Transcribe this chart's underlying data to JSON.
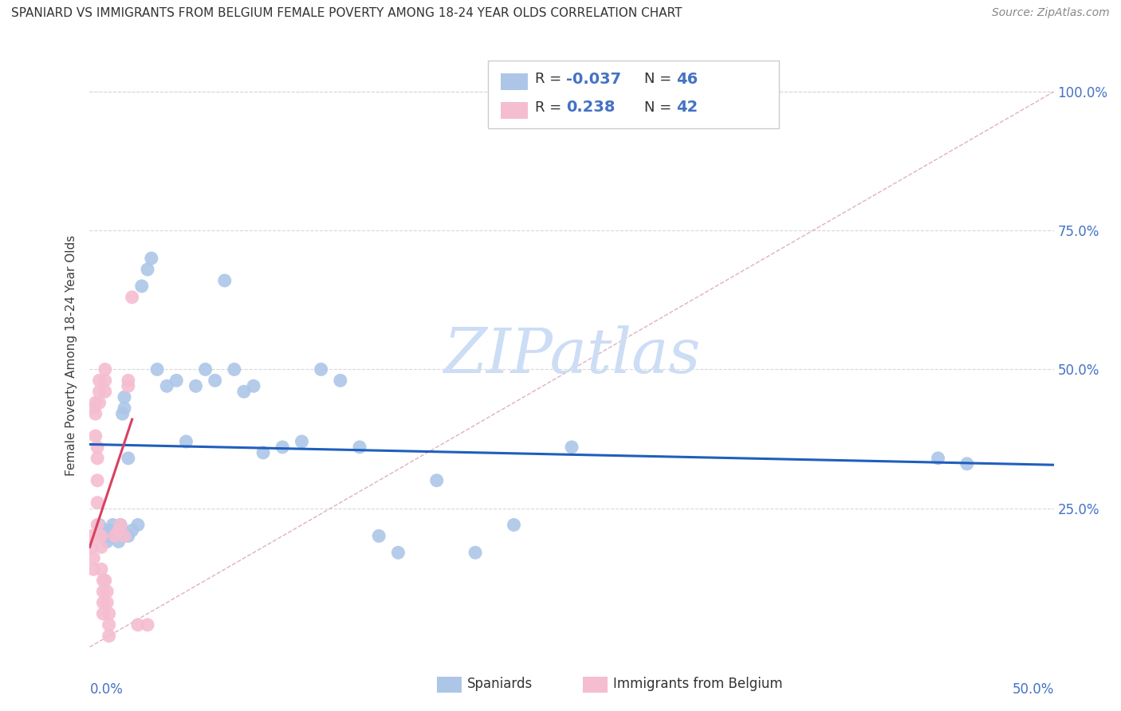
{
  "title": "SPANIARD VS IMMIGRANTS FROM BELGIUM FEMALE POVERTY AMONG 18-24 YEAR OLDS CORRELATION CHART",
  "source": "Source: ZipAtlas.com",
  "ylabel": "Female Poverty Among 18-24 Year Olds",
  "y_tick_labels": [
    "100.0%",
    "75.0%",
    "50.0%",
    "25.0%"
  ],
  "y_tick_values": [
    1.0,
    0.75,
    0.5,
    0.25
  ],
  "x_range": [
    0.0,
    0.5
  ],
  "y_range": [
    0.0,
    1.05
  ],
  "legend_blue_r": "-0.037",
  "legend_blue_n": "46",
  "legend_pink_r": "0.238",
  "legend_pink_n": "42",
  "blue_color": "#adc6e8",
  "pink_color": "#f5bdd0",
  "blue_line_color": "#1f5fbd",
  "pink_line_color": "#d94060",
  "diagonal_color": "#e0b0c0",
  "grid_color": "#d8d8d8",
  "watermark_color": "#ccddf5",
  "spaniards_x": [
    0.005,
    0.007,
    0.008,
    0.009,
    0.01,
    0.01,
    0.012,
    0.013,
    0.015,
    0.015,
    0.016,
    0.017,
    0.018,
    0.018,
    0.02,
    0.02,
    0.022,
    0.025,
    0.027,
    0.03,
    0.032,
    0.035,
    0.04,
    0.045,
    0.05,
    0.055,
    0.06,
    0.065,
    0.07,
    0.075,
    0.08,
    0.085,
    0.09,
    0.1,
    0.11,
    0.12,
    0.13,
    0.14,
    0.15,
    0.16,
    0.18,
    0.2,
    0.22,
    0.25,
    0.44,
    0.455
  ],
  "spaniards_y": [
    0.22,
    0.2,
    0.21,
    0.19,
    0.2,
    0.21,
    0.22,
    0.2,
    0.19,
    0.21,
    0.22,
    0.42,
    0.43,
    0.45,
    0.34,
    0.2,
    0.21,
    0.22,
    0.65,
    0.68,
    0.7,
    0.5,
    0.47,
    0.48,
    0.37,
    0.47,
    0.5,
    0.48,
    0.66,
    0.5,
    0.46,
    0.47,
    0.35,
    0.36,
    0.37,
    0.5,
    0.48,
    0.36,
    0.2,
    0.17,
    0.3,
    0.17,
    0.22,
    0.36,
    0.34,
    0.33
  ],
  "belgium_x": [
    0.001,
    0.001,
    0.002,
    0.002,
    0.002,
    0.003,
    0.003,
    0.003,
    0.004,
    0.004,
    0.004,
    0.004,
    0.004,
    0.005,
    0.005,
    0.005,
    0.005,
    0.006,
    0.006,
    0.006,
    0.007,
    0.007,
    0.007,
    0.007,
    0.008,
    0.008,
    0.008,
    0.008,
    0.009,
    0.009,
    0.01,
    0.01,
    0.01,
    0.013,
    0.015,
    0.016,
    0.018,
    0.02,
    0.02,
    0.022,
    0.025,
    0.03
  ],
  "belgium_y": [
    0.2,
    0.18,
    0.43,
    0.16,
    0.14,
    0.44,
    0.42,
    0.38,
    0.36,
    0.34,
    0.3,
    0.26,
    0.22,
    0.48,
    0.46,
    0.44,
    0.2,
    0.2,
    0.18,
    0.14,
    0.12,
    0.1,
    0.08,
    0.06,
    0.5,
    0.48,
    0.46,
    0.12,
    0.1,
    0.08,
    0.06,
    0.04,
    0.02,
    0.2,
    0.21,
    0.22,
    0.2,
    0.47,
    0.48,
    0.63,
    0.04,
    0.04
  ],
  "blue_line_x0": 0.0,
  "blue_line_x1": 0.5,
  "blue_line_y0": 0.365,
  "blue_line_y1": 0.328,
  "pink_line_x0": 0.0,
  "pink_line_x1": 0.022,
  "pink_line_y0": 0.18,
  "pink_line_y1": 0.41
}
